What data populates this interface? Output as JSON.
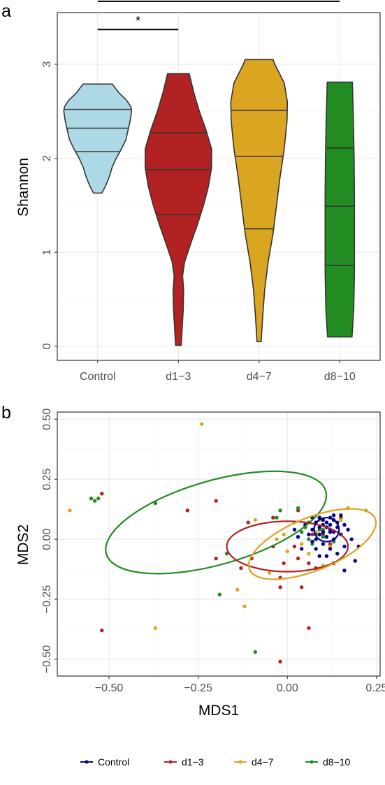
{
  "panels": {
    "a": "a",
    "b": "b"
  },
  "colors": {
    "Control_violin": "#add8e6",
    "d1-3": "#b22222",
    "d4-7": "#daa520",
    "d8-10": "#228b22",
    "Control_points": "#00008b"
  },
  "chart_data": [
    {
      "type": "violin",
      "panel": "a",
      "title": "",
      "xlabel": "",
      "ylabel": "Shannon",
      "categories": [
        "Control",
        "d1−3",
        "d4−7",
        "d8−10"
      ],
      "ylim": [
        -0.15,
        3.55
      ],
      "yticks": [
        0,
        1,
        2,
        3
      ],
      "grid": true,
      "series": [
        {
          "category": "Control",
          "fill": "#add8e6",
          "min": 1.63,
          "max": 2.79,
          "quantiles": [
            2.07,
            2.32,
            2.52
          ],
          "density": [
            [
              1.63,
              0.12
            ],
            [
              1.7,
              0.22
            ],
            [
              1.8,
              0.33
            ],
            [
              1.9,
              0.41
            ],
            [
              2.0,
              0.53
            ],
            [
              2.1,
              0.68
            ],
            [
              2.2,
              0.81
            ],
            [
              2.3,
              0.87
            ],
            [
              2.4,
              0.93
            ],
            [
              2.5,
              0.97
            ],
            [
              2.55,
              0.95
            ],
            [
              2.62,
              0.82
            ],
            [
              2.7,
              0.6
            ],
            [
              2.79,
              0.42
            ]
          ]
        },
        {
          "category": "d1−3",
          "fill": "#b22222",
          "min": 0.01,
          "max": 2.9,
          "quantiles": [
            1.4,
            1.88,
            2.27
          ],
          "density": [
            [
              0.01,
              0.08
            ],
            [
              0.2,
              0.11
            ],
            [
              0.4,
              0.14
            ],
            [
              0.6,
              0.15
            ],
            [
              0.75,
              0.12
            ],
            [
              0.9,
              0.18
            ],
            [
              1.1,
              0.36
            ],
            [
              1.3,
              0.55
            ],
            [
              1.5,
              0.72
            ],
            [
              1.7,
              0.86
            ],
            [
              1.9,
              0.95
            ],
            [
              2.1,
              0.95
            ],
            [
              2.3,
              0.79
            ],
            [
              2.5,
              0.6
            ],
            [
              2.7,
              0.44
            ],
            [
              2.9,
              0.31
            ]
          ]
        },
        {
          "category": "d4−7",
          "fill": "#daa520",
          "min": 0.05,
          "max": 3.05,
          "quantiles": [
            1.25,
            2.02,
            2.51
          ],
          "density": [
            [
              0.05,
              0.06
            ],
            [
              0.3,
              0.1
            ],
            [
              0.6,
              0.16
            ],
            [
              0.9,
              0.26
            ],
            [
              1.2,
              0.4
            ],
            [
              1.5,
              0.5
            ],
            [
              1.8,
              0.6
            ],
            [
              2.1,
              0.72
            ],
            [
              2.4,
              0.8
            ],
            [
              2.6,
              0.81
            ],
            [
              2.8,
              0.72
            ],
            [
              3.0,
              0.45
            ],
            [
              3.05,
              0.4
            ]
          ]
        },
        {
          "category": "d8−10",
          "fill": "#228b22",
          "min": 0.1,
          "max": 2.81,
          "quantiles": [
            0.86,
            1.49,
            2.11
          ],
          "density": [
            [
              0.1,
              0.35
            ],
            [
              0.4,
              0.4
            ],
            [
              0.8,
              0.42
            ],
            [
              1.2,
              0.42
            ],
            [
              1.6,
              0.42
            ],
            [
              2.0,
              0.41
            ],
            [
              2.4,
              0.39
            ],
            [
              2.81,
              0.36
            ]
          ]
        }
      ],
      "annotations": [
        {
          "text": "*",
          "from": "Control",
          "to": "d1−3",
          "y": 3.37
        },
        {
          "text": "*",
          "from": "Control",
          "to": "d8−10",
          "y": 3.67
        }
      ]
    },
    {
      "type": "scatter",
      "panel": "b",
      "title": "",
      "xlabel": "MDS1",
      "ylabel": "MDS2",
      "xlim": [
        -0.645,
        0.26
      ],
      "ylim": [
        -0.57,
        0.53
      ],
      "xticks": [
        -0.5,
        -0.25,
        0.0,
        0.25
      ],
      "xtick_labels": [
        "−0.50",
        "−0.25",
        "0.00",
        "0.25"
      ],
      "yticks": [
        -0.5,
        -0.25,
        0.0,
        0.25,
        0.5
      ],
      "ytick_labels": [
        "−0.50",
        "−0.25",
        "0.00",
        "0.25",
        "0.50"
      ],
      "grid": true,
      "legend_position": "bottom",
      "series": [
        {
          "name": "Control",
          "color": "#00008b",
          "ellipse": {
            "cx": 0.11,
            "cy": 0.04,
            "rx": 0.035,
            "ry": 0.05,
            "angle": 0
          },
          "points": [
            [
              0.08,
              0.07
            ],
            [
              0.09,
              0.05
            ],
            [
              0.1,
              0.08
            ],
            [
              0.11,
              0.07
            ],
            [
              0.12,
              0.06
            ],
            [
              0.13,
              0.08
            ],
            [
              0.14,
              0.05
            ],
            [
              0.1,
              0.03
            ],
            [
              0.09,
              0.02
            ],
            [
              0.11,
              0.01
            ],
            [
              0.12,
              0.03
            ],
            [
              0.13,
              0.0
            ],
            [
              0.07,
              0.04
            ],
            [
              0.06,
              0.02
            ],
            [
              0.08,
              0.0
            ],
            [
              0.1,
              -0.02
            ],
            [
              0.12,
              -0.04
            ],
            [
              0.15,
              0.02
            ],
            [
              0.16,
              0.06
            ],
            [
              0.17,
              0.04
            ],
            [
              0.18,
              0.0
            ],
            [
              0.16,
              -0.03
            ],
            [
              0.14,
              -0.06
            ],
            [
              0.11,
              -0.07
            ],
            [
              0.09,
              -0.07
            ],
            [
              0.04,
              -0.04
            ],
            [
              0.03,
              0.01
            ],
            [
              0.02,
              0.04
            ],
            [
              0.07,
              0.09
            ],
            [
              0.13,
              0.1
            ],
            [
              0.15,
              0.1
            ],
            [
              0.2,
              -0.03
            ],
            [
              0.19,
              -0.09
            ],
            [
              0.16,
              -0.13
            ],
            [
              0.08,
              -0.04
            ],
            [
              0.1,
              0.06
            ],
            [
              0.12,
              0.04
            ],
            [
              0.14,
              0.07
            ],
            [
              0.07,
              -0.01
            ],
            [
              0.05,
              0.06
            ],
            [
              0.12,
              0.09
            ],
            [
              0.09,
              0.09
            ],
            [
              0.13,
              0.03
            ],
            [
              0.11,
              0.05
            ]
          ]
        },
        {
          "name": "d1−3",
          "color": "#b22222",
          "ellipse": {
            "cx": 0.0,
            "cy": -0.03,
            "rx": 0.17,
            "ry": 0.105,
            "angle": 0
          },
          "points": [
            [
              -0.52,
              0.19
            ],
            [
              -0.52,
              -0.38
            ],
            [
              -0.28,
              0.12
            ],
            [
              -0.2,
              0.16
            ],
            [
              -0.2,
              -0.08
            ],
            [
              -0.11,
              0.07
            ],
            [
              -0.13,
              -0.12
            ],
            [
              -0.04,
              0.09
            ],
            [
              -0.04,
              -0.03
            ],
            [
              -0.1,
              -0.08
            ],
            [
              -0.01,
              -0.1
            ],
            [
              -0.02,
              -0.16
            ],
            [
              0.02,
              -0.03
            ],
            [
              0.03,
              -0.08
            ],
            [
              0.06,
              -0.1
            ],
            [
              0.08,
              -0.12
            ],
            [
              0.12,
              -0.02
            ],
            [
              0.13,
              -0.1
            ],
            [
              0.15,
              0.09
            ],
            [
              0.07,
              0.02
            ],
            [
              0.06,
              -0.37
            ],
            [
              -0.02,
              -0.51
            ],
            [
              0.04,
              -0.2
            ],
            [
              0.12,
              0.06
            ],
            [
              0.03,
              0.12
            ],
            [
              -0.02,
              -0.2
            ],
            [
              0.1,
              0.02
            ]
          ]
        },
        {
          "name": "d4−7",
          "color": "#daa520",
          "ellipse": {
            "cx": 0.07,
            "cy": -0.02,
            "rx": 0.19,
            "ry": 0.11,
            "angle": -22
          },
          "points": [
            [
              -0.61,
              0.12
            ],
            [
              -0.37,
              -0.37
            ],
            [
              -0.24,
              0.48
            ],
            [
              -0.14,
              -0.21
            ],
            [
              -0.12,
              -0.28
            ],
            [
              -0.05,
              -0.14
            ],
            [
              -0.03,
              0.0
            ],
            [
              -0.01,
              0.02
            ],
            [
              0.02,
              0.07
            ],
            [
              0.05,
              0.05
            ],
            [
              0.06,
              -0.06
            ],
            [
              0.08,
              0.03
            ],
            [
              0.1,
              -0.11
            ],
            [
              0.12,
              -0.03
            ],
            [
              0.15,
              0.08
            ],
            [
              0.17,
              0.13
            ],
            [
              0.22,
              0.12
            ],
            [
              -0.09,
              0.08
            ],
            [
              0.0,
              -0.05
            ],
            [
              0.04,
              -0.02
            ],
            [
              0.11,
              0.01
            ],
            [
              0.09,
              0.08
            ]
          ]
        },
        {
          "name": "d8−10",
          "color": "#228b22",
          "ellipse": {
            "cx": -0.2,
            "cy": 0.07,
            "rx": 0.32,
            "ry": 0.175,
            "angle": -16
          },
          "points": [
            [
              -0.55,
              0.17
            ],
            [
              -0.54,
              0.16
            ],
            [
              -0.37,
              0.15
            ],
            [
              -0.19,
              -0.23
            ],
            [
              -0.17,
              -0.06
            ],
            [
              -0.09,
              -0.47
            ],
            [
              -0.02,
              0.12
            ],
            [
              -0.03,
              0.09
            ],
            [
              0.03,
              0.13
            ],
            [
              0.04,
              0.03
            ],
            [
              0.06,
              0.07
            ],
            [
              0.06,
              0.0
            ],
            [
              0.09,
              0.04
            ],
            [
              0.1,
              0.01
            ],
            [
              0.13,
              -0.01
            ],
            [
              -0.53,
              0.17
            ],
            [
              0.05,
              0.05
            ],
            [
              0.07,
              -0.02
            ],
            [
              0.08,
              0.02
            ],
            [
              0.1,
              0.04
            ]
          ]
        }
      ]
    }
  ]
}
